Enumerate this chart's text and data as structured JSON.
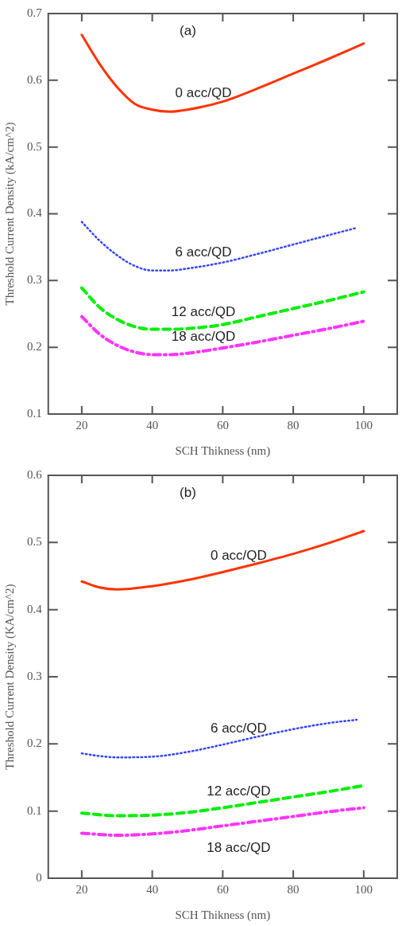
{
  "chart_data": [
    {
      "type": "line",
      "title": "(a)",
      "xlabel": "SCH Thikness (nm)",
      "ylabel": "Threshold Current Density (kA/cm^2)",
      "xlim": [
        10.5,
        109.5
      ],
      "xticks": [
        20,
        40,
        60,
        80,
        100
      ],
      "ylim": [
        0.1,
        0.7
      ],
      "yticks": [
        0.1,
        0.2,
        0.3,
        0.4,
        0.5,
        0.6,
        0.7
      ],
      "grid": false,
      "legend": false,
      "marker": "none",
      "series": [
        {
          "name": "0 acc/QD",
          "color": "#ff3300",
          "line_style": "solid",
          "x": [
            20,
            25,
            30,
            35,
            40,
            45,
            50,
            60,
            70,
            80,
            90,
            100
          ],
          "values": [
            0.668,
            0.625,
            0.59,
            0.565,
            0.556,
            0.553,
            0.556,
            0.568,
            0.588,
            0.61,
            0.632,
            0.655
          ]
        },
        {
          "name": "6 acc/QD",
          "color": "#3344ff",
          "line_style": "dotted",
          "x": [
            20,
            25,
            30,
            35,
            40,
            45,
            50,
            60,
            70,
            80,
            90,
            98
          ],
          "values": [
            0.388,
            0.36,
            0.338,
            0.322,
            0.315,
            0.315,
            0.318,
            0.327,
            0.34,
            0.354,
            0.368,
            0.379
          ]
        },
        {
          "name": "12 acc/QD",
          "color": "#00ee00",
          "line_style": "dashed",
          "x": [
            20,
            25,
            30,
            35,
            40,
            45,
            50,
            60,
            70,
            80,
            90,
            100
          ],
          "values": [
            0.289,
            0.26,
            0.242,
            0.231,
            0.227,
            0.227,
            0.228,
            0.234,
            0.246,
            0.258,
            0.27,
            0.283
          ]
        },
        {
          "name": "18 acc/QD",
          "color": "#ff33ff",
          "line_style": "dashdot",
          "x": [
            20,
            25,
            30,
            35,
            40,
            45,
            50,
            60,
            70,
            80,
            90,
            100
          ],
          "values": [
            0.246,
            0.22,
            0.203,
            0.193,
            0.189,
            0.189,
            0.191,
            0.199,
            0.208,
            0.218,
            0.228,
            0.239
          ]
        }
      ]
    },
    {
      "type": "line",
      "title": "(b)",
      "xlabel": "SCH Thikness (nm)",
      "ylabel": "Threshold Current Density (KA/cm^2)",
      "xlim": [
        10.5,
        109.5
      ],
      "xticks": [
        20,
        40,
        60,
        80,
        100
      ],
      "ylim": [
        0,
        0.6
      ],
      "yticks": [
        0,
        0.1,
        0.2,
        0.3,
        0.4,
        0.5,
        0.6
      ],
      "grid": false,
      "legend": false,
      "marker": "none",
      "series": [
        {
          "name": "0 acc/QD",
          "color": "#ff3300",
          "line_style": "solid",
          "x": [
            20,
            25,
            30,
            40,
            50,
            60,
            70,
            80,
            90,
            100
          ],
          "values": [
            0.442,
            0.433,
            0.43,
            0.435,
            0.444,
            0.456,
            0.469,
            0.483,
            0.499,
            0.517
          ]
        },
        {
          "name": "6 acc/QD",
          "color": "#3344ff",
          "line_style": "dotted",
          "x": [
            20,
            25,
            30,
            40,
            50,
            60,
            70,
            80,
            90,
            98
          ],
          "values": [
            0.186,
            0.182,
            0.18,
            0.181,
            0.188,
            0.199,
            0.211,
            0.222,
            0.231,
            0.236
          ]
        },
        {
          "name": "12 acc/QD",
          "color": "#00ee00",
          "line_style": "dashed",
          "x": [
            20,
            30,
            40,
            50,
            60,
            70,
            80,
            90,
            100
          ],
          "values": [
            0.097,
            0.093,
            0.094,
            0.098,
            0.105,
            0.113,
            0.121,
            0.129,
            0.138
          ]
        },
        {
          "name": "18 acc/QD",
          "color": "#ff33ff",
          "line_style": "dashdot",
          "x": [
            20,
            30,
            40,
            50,
            60,
            70,
            80,
            90,
            100
          ],
          "values": [
            0.067,
            0.064,
            0.066,
            0.071,
            0.078,
            0.085,
            0.092,
            0.099,
            0.105
          ]
        }
      ]
    }
  ]
}
